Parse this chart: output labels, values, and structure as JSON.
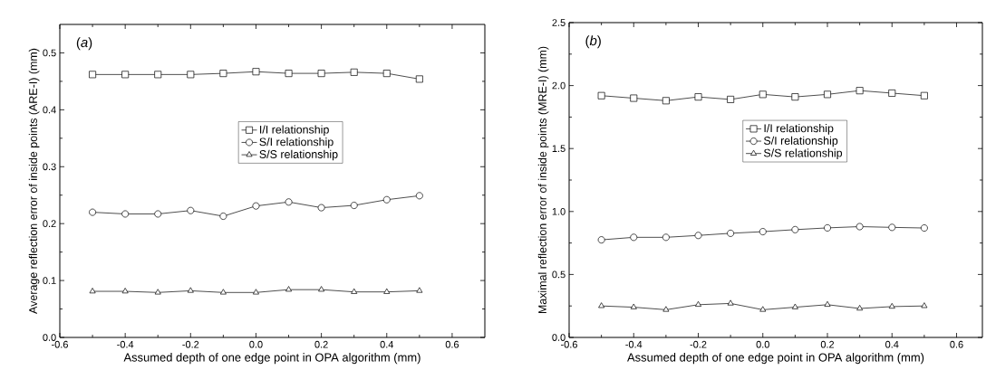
{
  "chart_data": [
    {
      "type": "line",
      "xlabel": "Assumed depth of one edge point in OPA algorithm (mm)",
      "ylabel": "Average reflection error of inside points (ARE-I) (mm)",
      "annotations": [
        "(*a*)"
      ],
      "x": [
        -0.5,
        -0.4,
        -0.3,
        -0.2,
        -0.1,
        0.0,
        0.1,
        0.2,
        0.3,
        0.4,
        0.5
      ],
      "series": [
        {
          "name": "I/I relationship",
          "color": "#000000",
          "marker": "square",
          "values": [
            0.462,
            0.462,
            0.462,
            0.462,
            0.464,
            0.467,
            0.464,
            0.464,
            0.466,
            0.464,
            0.454
          ]
        },
        {
          "name": "S/I relationship",
          "color": "#000000",
          "marker": "circle",
          "values": [
            0.22,
            0.217,
            0.217,
            0.223,
            0.213,
            0.231,
            0.238,
            0.228,
            0.232,
            0.242,
            0.249
          ]
        },
        {
          "name": "S/S relationship",
          "color": "#000000",
          "marker": "triangle",
          "values": [
            0.081,
            0.081,
            0.079,
            0.082,
            0.079,
            0.079,
            0.084,
            0.084,
            0.08,
            0.08,
            0.082
          ]
        }
      ],
      "xlim": [
        -0.6,
        0.7
      ],
      "xticks": [
        {
          "value": -0.6,
          "label": "-0.6"
        },
        {
          "value": -0.4,
          "label": "-0.4"
        },
        {
          "value": -0.2,
          "label": "-0.2"
        },
        {
          "value": 0.0,
          "label": "0.0"
        },
        {
          "value": 0.2,
          "label": "0.2"
        },
        {
          "value": 0.4,
          "label": "0.4"
        },
        {
          "value": 0.6,
          "label": "0.6"
        }
      ],
      "ylim": [
        0,
        0.55
      ],
      "yticks": [
        {
          "value": 0,
          "label": "0.0"
        },
        0.1,
        0.2,
        0.3,
        0.4,
        0.5
      ],
      "legend": "center",
      "grid": false
    },
    {
      "type": "line",
      "xlabel": "Assumed depth of one edge point in OPA algorithm (mm)",
      "ylabel": "Maximal reflection error of inside points (MRE-I) (mm)",
      "annotations": [
        "(*b*)"
      ],
      "x": [
        -0.5,
        -0.4,
        -0.3,
        -0.2,
        -0.1,
        0.0,
        0.1,
        0.2,
        0.3,
        0.4,
        0.5
      ],
      "series": [
        {
          "name": "I/I relationship",
          "color": "#000000",
          "marker": "square",
          "values": [
            1.92,
            1.9,
            1.88,
            1.91,
            1.89,
            1.93,
            1.91,
            1.93,
            1.96,
            1.94,
            1.92
          ]
        },
        {
          "name": "S/I relationship",
          "color": "#000000",
          "marker": "circle",
          "values": [
            0.775,
            0.795,
            0.795,
            0.81,
            0.827,
            0.84,
            0.856,
            0.87,
            0.88,
            0.874,
            0.869
          ]
        },
        {
          "name": "S/S relationship",
          "color": "#000000",
          "marker": "triangle",
          "values": [
            0.25,
            0.24,
            0.22,
            0.26,
            0.27,
            0.22,
            0.24,
            0.26,
            0.23,
            0.245,
            0.25
          ]
        }
      ],
      "xlim": [
        -0.6,
        0.68
      ],
      "xticks": [
        {
          "value": -0.6,
          "label": "-0.6"
        },
        {
          "value": -0.4,
          "label": "-0.4"
        },
        {
          "value": -0.2,
          "label": "-0.2"
        },
        {
          "value": 0.0,
          "label": "0.0"
        },
        {
          "value": 0.2,
          "label": "0.2"
        },
        {
          "value": 0.4,
          "label": "0.4"
        },
        {
          "value": 0.6,
          "label": "0.6"
        }
      ],
      "ylim": [
        0,
        2.5
      ],
      "yticks": [
        {
          "value": 0,
          "label": "0.0"
        },
        0.5,
        {
          "value": 1,
          "label": "1.0"
        },
        1.5,
        {
          "value": 2,
          "label": "2.0"
        },
        2.5
      ],
      "legend": "center",
      "grid": false
    }
  ]
}
